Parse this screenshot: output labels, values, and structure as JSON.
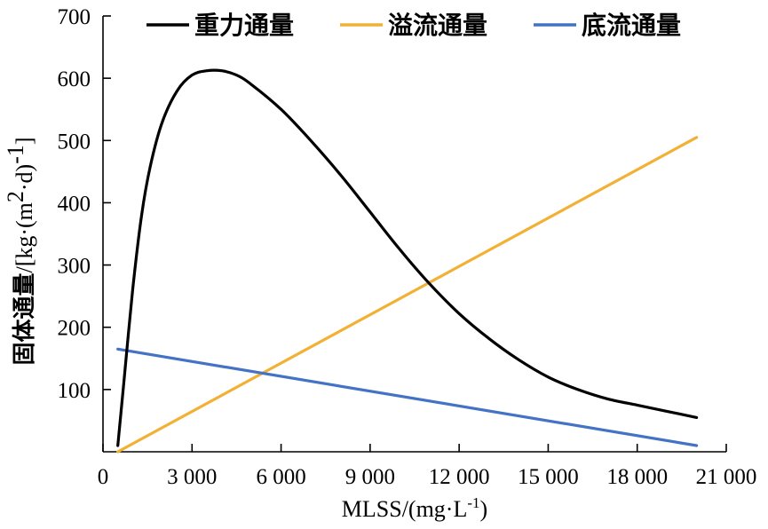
{
  "chart_data": {
    "type": "line",
    "xlabel": "MLSS/(mg·L⁻¹)",
    "xlabel_parts": {
      "main": "MLSS/(mg·L",
      "sup": "-1",
      "end": ")"
    },
    "ylabel": "固体通量/[kg·(m²·d)⁻¹]",
    "ylabel_parts": {
      "cjk": "固体通量",
      "a": "/[kg·(m",
      "sup1": "2",
      "b": "·d)",
      "sup2": "-1",
      "c": "]"
    },
    "xlim": [
      0,
      21000
    ],
    "ylim": [
      0,
      700
    ],
    "x_ticks": [
      0,
      3000,
      6000,
      9000,
      12000,
      15000,
      18000,
      21000
    ],
    "x_tick_labels": [
      "0",
      "3 000",
      "6 000",
      "9 000",
      "12 000",
      "15 000",
      "18 000",
      "21 000"
    ],
    "y_ticks": [
      100,
      200,
      300,
      400,
      500,
      600,
      700
    ],
    "y_tick_labels": [
      "100",
      "200",
      "300",
      "400",
      "500",
      "600",
      "700"
    ],
    "legend_position": "top",
    "series": [
      {
        "name": "重力通量",
        "color": "#000000",
        "x": [
          500,
          700,
          1000,
          1300,
          1600,
          2000,
          2500,
          3000,
          3500,
          4000,
          4500,
          5000,
          6000,
          7000,
          8000,
          9000,
          10000,
          11000,
          12000,
          13000,
          14000,
          15000,
          16000,
          17000,
          18000,
          19000,
          20000
        ],
        "y": [
          10,
          110,
          260,
          380,
          460,
          530,
          580,
          605,
          612,
          612,
          605,
          590,
          550,
          500,
          445,
          385,
          325,
          270,
          222,
          182,
          148,
          120,
          100,
          85,
          75,
          65,
          55
        ]
      },
      {
        "name": "溢流通量",
        "color": "#f2b134",
        "x": [
          500,
          20000
        ],
        "y": [
          0,
          505
        ]
      },
      {
        "name": "底流通量",
        "color": "#4472c4",
        "x": [
          500,
          20000
        ],
        "y": [
          165,
          10
        ]
      }
    ]
  }
}
